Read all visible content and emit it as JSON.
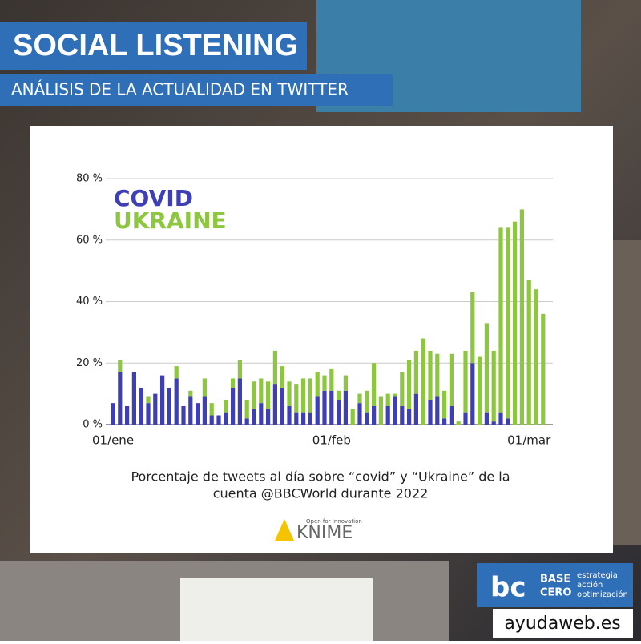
{
  "header": {
    "title": "SOCIAL LISTENING",
    "subtitle": "ANÁLISIS DE LA ACTUALIDAD EN TWITTER"
  },
  "chart_data": {
    "type": "bar",
    "stacked": true,
    "categories": [
      "01/ene",
      null,
      null,
      null,
      null,
      null,
      null,
      null,
      null,
      null,
      null,
      null,
      null,
      null,
      null,
      null,
      null,
      null,
      null,
      null,
      null,
      null,
      null,
      null,
      null,
      null,
      null,
      null,
      null,
      null,
      null,
      "01/feb",
      null,
      null,
      null,
      null,
      null,
      null,
      null,
      null,
      null,
      null,
      null,
      null,
      null,
      null,
      null,
      null,
      null,
      null,
      null,
      null,
      null,
      null,
      null,
      null,
      null,
      null,
      null,
      "01/mar",
      null,
      null
    ],
    "series": [
      {
        "name": "COVID",
        "color": "#3f3fb5",
        "values": [
          7,
          17,
          6,
          17,
          12,
          7,
          10,
          16,
          12,
          15,
          6,
          9,
          7,
          9,
          3,
          3,
          4,
          12,
          15,
          2,
          5,
          7,
          5,
          13,
          12,
          6,
          4,
          4,
          4,
          9,
          11,
          11,
          8,
          11,
          0,
          7,
          4,
          6,
          0,
          6,
          9,
          6,
          5,
          10,
          0,
          8,
          9,
          2,
          6,
          0,
          4,
          20,
          0,
          4,
          1,
          4,
          2,
          0,
          0,
          0,
          0,
          0
        ]
      },
      {
        "name": "UKRAINE",
        "color": "#8dc63f",
        "values": [
          0,
          4,
          0,
          0,
          0,
          2,
          0,
          0,
          0,
          4,
          0,
          2,
          0,
          6,
          4,
          0,
          4,
          3,
          6,
          6,
          9,
          8,
          9,
          11,
          7,
          8,
          9,
          11,
          11,
          8,
          5,
          7,
          3,
          5,
          5,
          3,
          7,
          14,
          9,
          4,
          1,
          11,
          16,
          14,
          28,
          16,
          14,
          9,
          17,
          1,
          20,
          23,
          22,
          29,
          23,
          60,
          62,
          66,
          70,
          47,
          44,
          36
        ]
      }
    ],
    "ylim": [
      0,
      80
    ],
    "yticks": [
      {
        "value": 0,
        "label": "0 %"
      },
      {
        "value": 20,
        "label": "20 %"
      },
      {
        "value": 40,
        "label": "40 %"
      },
      {
        "value": 60,
        "label": "60 %"
      },
      {
        "value": 80,
        "label": "80 %"
      }
    ],
    "grid": true,
    "caption": [
      "Porcentaje de tweets al día sobre “covid” y “Ukraine” de la",
      "cuenta @BBCWorld durante 2022"
    ]
  },
  "footer": {
    "knime_tagline": "Open for Innovation",
    "knime": "KNIME",
    "brand": "BASE",
    "brand2": "CERO",
    "brand_lines": [
      "estrategia",
      "acción",
      "optimización"
    ],
    "site": "ayudaweb.es"
  }
}
